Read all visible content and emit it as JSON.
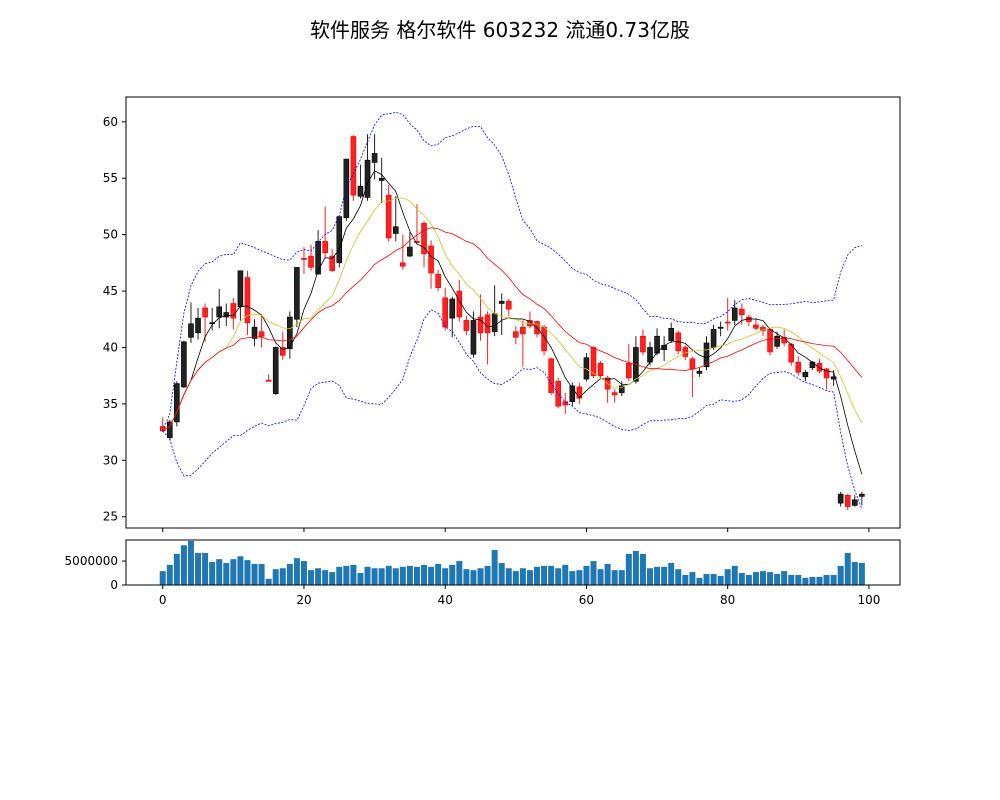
{
  "title": "软件服务 格尔软件 603232 流通0.73亿股",
  "chart_data": [
    {
      "type": "candlestick",
      "title": "软件服务 格尔软件 603232 流通0.73亿股",
      "xlim": [
        -5.2,
        104.4
      ],
      "ylim": [
        24.0,
        62.2
      ],
      "yticks": [
        25,
        30,
        35,
        40,
        45,
        50,
        55,
        60
      ],
      "up_color": "#222222",
      "down_color": "#ff2020",
      "overlays": [
        {
          "kind": "moving-average",
          "window": 5,
          "color": "#000000"
        },
        {
          "kind": "moving-average",
          "window": 10,
          "color": "#c8c820"
        },
        {
          "kind": "moving-average",
          "window": 20,
          "color": "#ff0000"
        },
        {
          "kind": "bollinger-band",
          "window": 20,
          "k": 2,
          "color": "#0000ff",
          "style": "dashed"
        }
      ],
      "ohlc": [
        [
          33.0,
          33.8,
          32.5,
          32.6
        ],
        [
          32.0,
          33.6,
          31.8,
          33.4
        ],
        [
          33.4,
          37.0,
          33.0,
          36.8
        ],
        [
          36.5,
          40.6,
          36.4,
          40.5
        ],
        [
          40.9,
          44.0,
          40.4,
          42.1
        ],
        [
          41.3,
          43.5,
          40.7,
          42.6
        ],
        [
          43.5,
          43.9,
          40.5,
          42.7
        ],
        [
          42.2,
          43.5,
          41.5,
          42.2
        ],
        [
          42.7,
          45.2,
          41.7,
          43.6
        ],
        [
          42.7,
          43.9,
          41.9,
          43.1
        ],
        [
          43.9,
          44.4,
          41.6,
          42.6
        ],
        [
          43.6,
          46.8,
          42.4,
          46.8
        ],
        [
          46.2,
          46.8,
          41.1,
          42.2
        ],
        [
          40.8,
          42.5,
          40.1,
          41.8
        ],
        [
          41.4,
          42.9,
          40.0,
          41.0
        ],
        [
          37.1,
          37.6,
          37.0,
          37.0
        ],
        [
          35.9,
          40.1,
          35.8,
          40.0
        ],
        [
          40.0,
          41.4,
          38.9,
          39.3
        ],
        [
          39.9,
          43.2,
          39.0,
          42.7
        ],
        [
          42.5,
          47.1,
          41.8,
          47.1
        ],
        [
          47.9,
          48.9,
          46.5,
          47.8
        ],
        [
          48.1,
          49.1,
          46.8,
          47.1
        ],
        [
          46.5,
          50.4,
          46.5,
          49.4
        ],
        [
          49.4,
          52.5,
          48.0,
          48.4
        ],
        [
          48.1,
          48.7,
          46.7,
          46.8
        ],
        [
          47.5,
          51.6,
          47.1,
          51.6
        ],
        [
          51.5,
          56.7,
          51.2,
          56.7
        ],
        [
          58.7,
          58.8,
          53.0,
          53.5
        ],
        [
          53.4,
          56.2,
          53.2,
          54.3
        ],
        [
          53.3,
          58.9,
          53.0,
          56.6
        ],
        [
          56.4,
          58.9,
          54.9,
          57.2
        ],
        [
          54.8,
          56.8,
          52.8,
          55.0
        ],
        [
          53.5,
          54.4,
          49.4,
          49.7
        ],
        [
          50.1,
          53.4,
          49.4,
          50.7
        ],
        [
          47.5,
          50.0,
          46.9,
          47.2
        ],
        [
          48.1,
          50.2,
          48.0,
          48.9
        ],
        [
          49.4,
          52.7,
          49.2,
          49.3
        ],
        [
          51.0,
          51.2,
          47.1,
          48.3
        ],
        [
          49.0,
          49.5,
          45.2,
          46.6
        ],
        [
          46.5,
          46.9,
          45.0,
          45.3
        ],
        [
          44.4,
          45.3,
          41.5,
          41.8
        ],
        [
          42.6,
          44.5,
          40.9,
          44.3
        ],
        [
          45.0,
          46.0,
          42.3,
          42.7
        ],
        [
          42.4,
          42.8,
          41.1,
          41.5
        ],
        [
          39.4,
          43.2,
          39.1,
          42.4
        ],
        [
          42.7,
          44.7,
          40.6,
          41.3
        ],
        [
          42.9,
          43.2,
          38.5,
          41.3
        ],
        [
          41.4,
          45.5,
          41.0,
          43.0
        ],
        [
          43.9,
          44.8,
          41.1,
          44.1
        ],
        [
          44.1,
          44.3,
          42.8,
          43.4
        ],
        [
          41.4,
          41.9,
          40.3,
          40.9
        ],
        [
          41.8,
          42.4,
          38.3,
          41.2
        ],
        [
          42.4,
          43.2,
          41.7,
          41.9
        ],
        [
          42.3,
          42.4,
          40.9,
          41.2
        ],
        [
          41.8,
          42.0,
          39.3,
          39.7
        ],
        [
          39.0,
          39.1,
          35.8,
          36.0
        ],
        [
          37.0,
          37.3,
          34.6,
          34.8
        ],
        [
          35.2,
          36.0,
          34.1,
          34.9
        ],
        [
          35.2,
          36.9,
          34.8,
          36.6
        ],
        [
          36.5,
          36.9,
          35.0,
          35.5
        ],
        [
          37.2,
          39.5,
          37.0,
          39.1
        ],
        [
          40.0,
          40.1,
          37.3,
          37.5
        ],
        [
          38.6,
          38.8,
          37.2,
          37.5
        ],
        [
          37.3,
          37.5,
          35.1,
          36.3
        ],
        [
          36.0,
          36.3,
          35.1,
          35.8
        ],
        [
          36.0,
          37.0,
          35.7,
          36.6
        ],
        [
          38.6,
          40.3,
          37.0,
          37.3
        ],
        [
          37.0,
          41.0,
          36.8,
          40.0
        ],
        [
          41.0,
          41.6,
          39.3,
          39.6
        ],
        [
          38.7,
          40.5,
          38.4,
          40.0
        ],
        [
          39.5,
          41.7,
          39.3,
          41.0
        ],
        [
          39.8,
          41.0,
          38.8,
          40.2
        ],
        [
          40.6,
          42.2,
          40.4,
          41.7
        ],
        [
          41.3,
          41.5,
          39.4,
          39.7
        ],
        [
          40.0,
          40.2,
          38.9,
          39.2
        ],
        [
          39.0,
          39.2,
          35.6,
          38.1
        ],
        [
          37.7,
          38.2,
          37.4,
          37.9
        ],
        [
          38.3,
          41.0,
          38.0,
          40.4
        ],
        [
          40.0,
          42.0,
          39.8,
          41.6
        ],
        [
          41.7,
          42.3,
          41.0,
          41.8
        ],
        [
          42.25,
          44.4,
          41.5,
          42.2
        ],
        [
          42.4,
          44.2,
          42.0,
          43.5
        ],
        [
          43.4,
          43.9,
          42.0,
          42.9
        ],
        [
          42.7,
          42.9,
          41.9,
          42.3
        ],
        [
          42.0,
          42.6,
          41.5,
          41.7
        ],
        [
          41.8,
          42.0,
          41.0,
          41.5
        ],
        [
          41.6,
          41.7,
          39.3,
          39.6
        ],
        [
          40.1,
          41.4,
          39.9,
          41.0
        ],
        [
          40.9,
          41.6,
          40.1,
          40.4
        ],
        [
          40.3,
          40.4,
          38.4,
          38.7
        ],
        [
          38.7,
          39.2,
          37.5,
          37.8
        ],
        [
          37.4,
          38.0,
          37.0,
          37.8
        ],
        [
          38.2,
          38.8,
          38.0,
          38.7
        ],
        [
          38.6,
          39.0,
          37.7,
          37.9
        ],
        [
          38.1,
          38.2,
          36.3,
          37.3
        ],
        [
          37.2,
          38.0,
          36.6,
          37.4
        ],
        [
          26.2,
          27.2,
          25.9,
          27.0
        ],
        [
          26.9,
          27.0,
          25.6,
          25.9
        ],
        [
          26.0,
          26.9,
          25.9,
          26.5
        ],
        [
          26.8,
          27.2,
          26.0,
          27.0
        ]
      ]
    },
    {
      "type": "bar",
      "xticks": [
        0,
        20,
        40,
        60,
        80,
        100
      ],
      "yticks": [
        0,
        5000000
      ],
      "ylim": [
        0,
        9400000
      ],
      "color": "#1f77b4",
      "values": [
        2900000,
        4200000,
        6500000,
        8300000,
        9200000,
        6700000,
        6700000,
        4800000,
        5400000,
        4600000,
        5400000,
        6000000,
        5200000,
        4400000,
        4400000,
        1300000,
        3300000,
        3500000,
        4400000,
        5600000,
        5000000,
        3100000,
        3500000,
        3100000,
        2700000,
        3800000,
        4000000,
        4200000,
        2500000,
        3800000,
        3500000,
        3500000,
        4000000,
        3500000,
        3800000,
        4000000,
        3800000,
        4200000,
        3800000,
        4400000,
        3500000,
        4200000,
        5000000,
        3300000,
        3100000,
        3500000,
        4000000,
        7300000,
        4600000,
        3500000,
        2900000,
        3500000,
        3100000,
        3800000,
        4000000,
        4000000,
        3500000,
        4200000,
        2900000,
        3100000,
        4000000,
        5000000,
        3300000,
        4400000,
        3100000,
        3100000,
        6500000,
        7100000,
        6500000,
        3500000,
        3800000,
        3800000,
        4600000,
        3300000,
        2100000,
        2700000,
        1500000,
        2300000,
        2300000,
        1900000,
        3300000,
        4000000,
        2500000,
        2100000,
        2700000,
        2900000,
        2700000,
        2300000,
        2900000,
        2100000,
        2100000,
        1500000,
        1700000,
        1700000,
        2100000,
        2100000,
        4000000,
        6700000,
        4800000,
        4600000
      ]
    }
  ]
}
